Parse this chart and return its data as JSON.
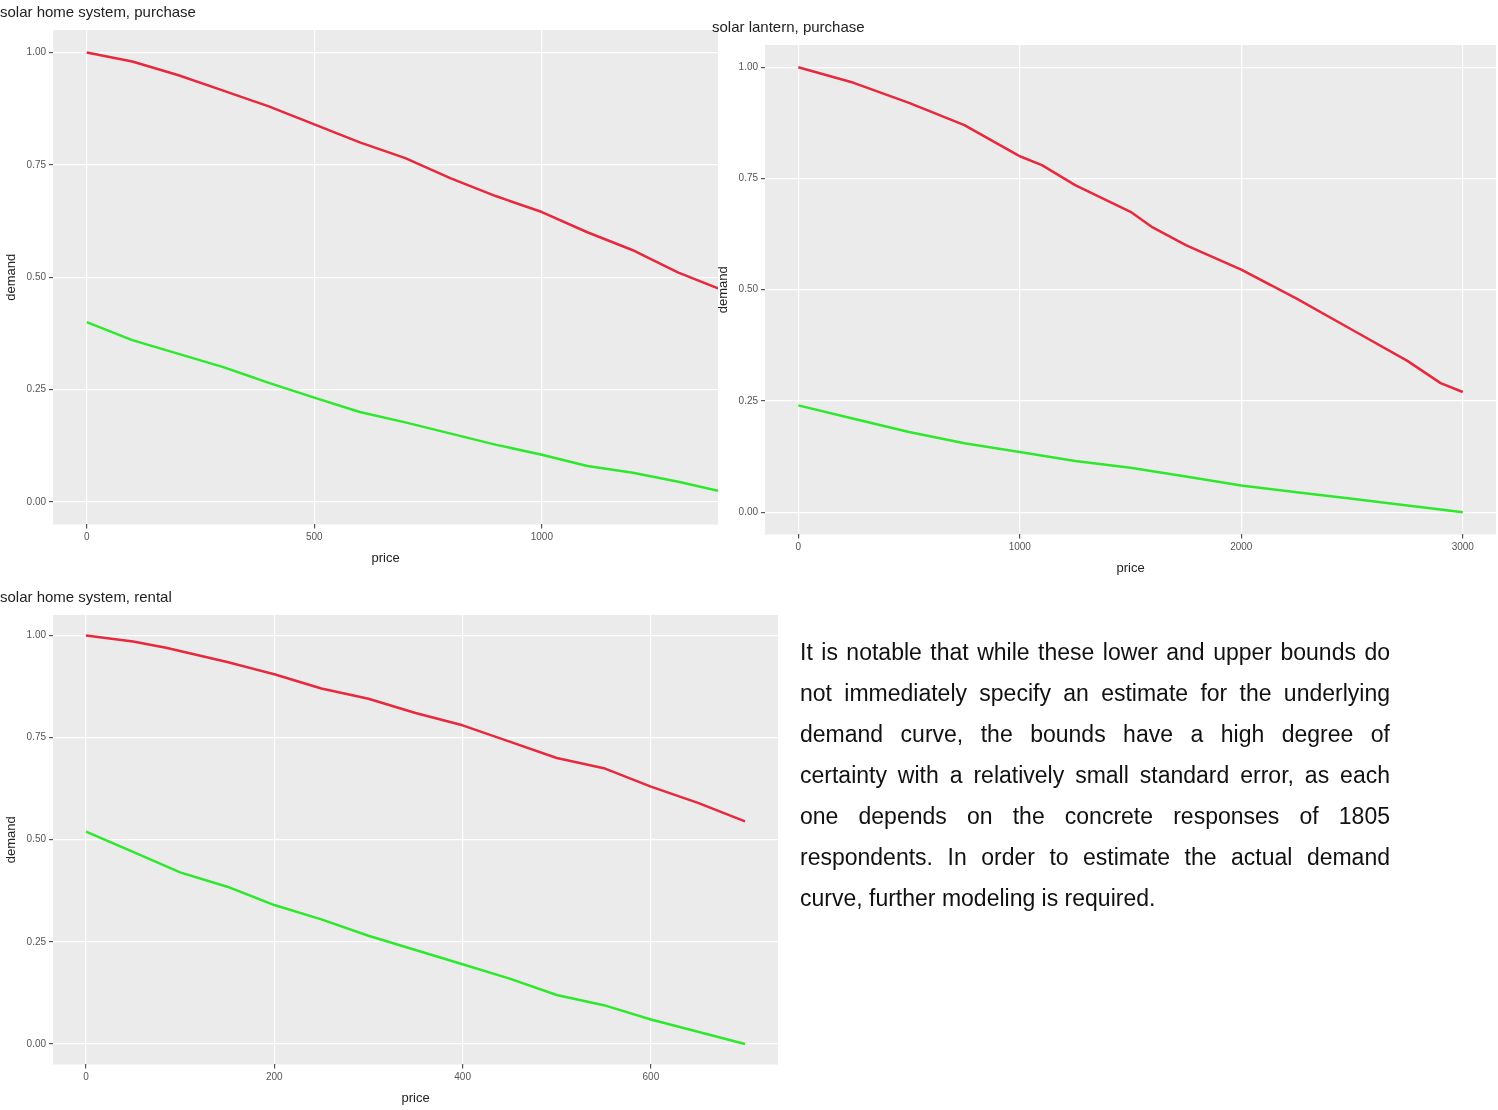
{
  "chart_data": [
    {
      "type": "line",
      "title": "solar home system, purchase",
      "xlabel": "price",
      "ylabel": "demand",
      "xlim": [
        -74,
        1387
      ],
      "ylim": [
        -0.05,
        1.05
      ],
      "xticks": [
        0,
        500,
        1000
      ],
      "yticks": [
        {
          "value": 0,
          "label": "0.00"
        },
        {
          "value": 0.25,
          "label": "0.25"
        },
        {
          "value": 0.5,
          "label": "0.50"
        },
        {
          "value": 0.75,
          "label": "0.75"
        },
        {
          "value": 1,
          "label": "1.00"
        }
      ],
      "grid": true,
      "legend": false,
      "series": [
        {
          "color": "#e8283c",
          "x": [
            0,
            100,
            200,
            300,
            400,
            500,
            600,
            700,
            800,
            900,
            1000,
            1100,
            1200,
            1300,
            1387
          ],
          "values": [
            1.0,
            0.98,
            0.95,
            0.915,
            0.88,
            0.84,
            0.8,
            0.765,
            0.72,
            0.68,
            0.645,
            0.6,
            0.56,
            0.51,
            0.475
          ]
        },
        {
          "color": "#2ee82e",
          "x": [
            0,
            100,
            200,
            300,
            400,
            500,
            600,
            700,
            800,
            900,
            1000,
            1100,
            1200,
            1300,
            1387
          ],
          "values": [
            0.4,
            0.36,
            0.33,
            0.3,
            0.265,
            0.232,
            0.2,
            0.177,
            0.152,
            0.127,
            0.105,
            0.08,
            0.065,
            0.045,
            0.025
          ]
        }
      ]
    },
    {
      "type": "line",
      "title": "solar lantern, purchase",
      "xlabel": "price",
      "ylabel": "demand",
      "xlim": [
        -150,
        3150
      ],
      "ylim": [
        -0.05,
        1.05
      ],
      "xticks": [
        0,
        1000,
        2000,
        3000
      ],
      "yticks": [
        {
          "value": 0,
          "label": "0.00"
        },
        {
          "value": 0.25,
          "label": "0.25"
        },
        {
          "value": 0.5,
          "label": "0.50"
        },
        {
          "value": 0.75,
          "label": "0.75"
        },
        {
          "value": 1,
          "label": "1.00"
        }
      ],
      "grid": true,
      "legend": false,
      "series": [
        {
          "color": "#e8283c",
          "x": [
            0,
            250,
            500,
            750,
            1000,
            1100,
            1250,
            1500,
            1600,
            1750,
            2000,
            2250,
            2500,
            2750,
            2900,
            3000
          ],
          "values": [
            1.0,
            0.965,
            0.92,
            0.87,
            0.8,
            0.78,
            0.735,
            0.675,
            0.64,
            0.6,
            0.545,
            0.48,
            0.41,
            0.34,
            0.29,
            0.27
          ]
        },
        {
          "color": "#2ee82e",
          "x": [
            0,
            250,
            500,
            750,
            1000,
            1250,
            1500,
            1750,
            2000,
            2250,
            2500,
            2750,
            3000
          ],
          "values": [
            0.24,
            0.21,
            0.18,
            0.155,
            0.135,
            0.115,
            0.1,
            0.08,
            0.06,
            0.045,
            0.03,
            0.015,
            0.0
          ]
        }
      ]
    },
    {
      "type": "line",
      "title": "solar home system, rental",
      "xlabel": "price",
      "ylabel": "demand",
      "xlim": [
        -35,
        735
      ],
      "ylim": [
        -0.05,
        1.05
      ],
      "xticks": [
        0,
        200,
        400,
        600
      ],
      "yticks": [
        {
          "value": 0,
          "label": "0.00"
        },
        {
          "value": 0.25,
          "label": "0.25"
        },
        {
          "value": 0.5,
          "label": "0.50"
        },
        {
          "value": 0.75,
          "label": "0.75"
        },
        {
          "value": 1,
          "label": "1.00"
        }
      ],
      "grid": true,
      "legend": false,
      "series": [
        {
          "color": "#e8283c",
          "x": [
            0,
            50,
            85,
            150,
            200,
            250,
            300,
            350,
            400,
            450,
            500,
            550,
            600,
            650,
            700
          ],
          "values": [
            1.0,
            0.985,
            0.97,
            0.935,
            0.905,
            0.87,
            0.845,
            0.81,
            0.78,
            0.74,
            0.7,
            0.675,
            0.63,
            0.59,
            0.545
          ]
        },
        {
          "color": "#2ee82e",
          "x": [
            0,
            50,
            100,
            150,
            200,
            250,
            300,
            350,
            400,
            450,
            500,
            550,
            600,
            650,
            700
          ],
          "values": [
            0.52,
            0.47,
            0.42,
            0.385,
            0.34,
            0.305,
            0.265,
            0.23,
            0.195,
            0.16,
            0.12,
            0.095,
            0.06,
            0.03,
            0.0
          ]
        }
      ]
    },
    {
      "type": "other",
      "annotations": [
        "It is notable that while these lower and upper bounds do not immediately specify an estimate for the underlying demand curve, the bounds have a high degree of certainty with a relatively small standard error, as each one depends on the concrete responses of 1805 respondents.  In order to estimate the actual demand curve, further modeling is required."
      ]
    }
  ]
}
